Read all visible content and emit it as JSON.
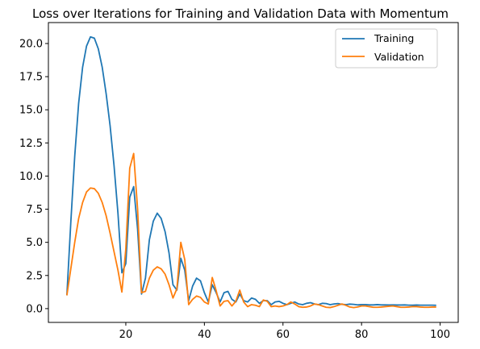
{
  "chart_data": {
    "type": "line",
    "title": "Loss over Iterations for Training and Validation Data with Momentum",
    "xlabel": "",
    "ylabel": "",
    "xlim": [
      0.3,
      104.6
    ],
    "ylim": [
      -1.04,
      21.58
    ],
    "xticks": [
      20,
      40,
      60,
      80,
      100
    ],
    "yticks": [
      0.0,
      2.5,
      5.0,
      7.5,
      10.0,
      12.5,
      15.0,
      17.5,
      20.0
    ],
    "xtick_labels": [
      "20",
      "40",
      "60",
      "80",
      "100"
    ],
    "ytick_labels": [
      "0.0",
      "2.5",
      "5.0",
      "7.5",
      "10.0",
      "12.5",
      "15.0",
      "17.5",
      "20.0"
    ],
    "grid": false,
    "legend_position": "top-right",
    "x": [
      5,
      6,
      7,
      8,
      9,
      10,
      11,
      12,
      13,
      14,
      15,
      16,
      17,
      18,
      19,
      20,
      21,
      22,
      23,
      24,
      25,
      26,
      27,
      28,
      29,
      30,
      31,
      32,
      33,
      34,
      35,
      36,
      37,
      38,
      39,
      40,
      41,
      42,
      43,
      44,
      45,
      46,
      47,
      48,
      49,
      50,
      51,
      52,
      53,
      54,
      55,
      56,
      57,
      58,
      59,
      60,
      61,
      62,
      63,
      64,
      65,
      66,
      67,
      68,
      69,
      70,
      71,
      72,
      73,
      74,
      75,
      76,
      77,
      78,
      79,
      80,
      81,
      82,
      83,
      84,
      85,
      86,
      87,
      88,
      89,
      90,
      91,
      92,
      93,
      94,
      95,
      96,
      97,
      98,
      99
    ],
    "series": [
      {
        "name": "Training",
        "color": "#1f77b4",
        "values": [
          1.0,
          6.5,
          11.5,
          15.5,
          18.2,
          19.8,
          20.5,
          20.4,
          19.6,
          18.2,
          16.2,
          13.8,
          10.8,
          7.2,
          2.7,
          3.4,
          8.4,
          9.2,
          6.0,
          1.1,
          2.3,
          5.2,
          6.6,
          7.2,
          6.8,
          5.8,
          4.2,
          1.8,
          1.4,
          3.8,
          2.9,
          0.6,
          1.7,
          2.3,
          2.1,
          1.2,
          0.5,
          1.8,
          1.2,
          0.5,
          1.2,
          1.3,
          0.7,
          0.5,
          1.1,
          0.6,
          0.5,
          0.8,
          0.7,
          0.4,
          0.6,
          0.6,
          0.3,
          0.5,
          0.55,
          0.4,
          0.3,
          0.4,
          0.5,
          0.35,
          0.3,
          0.4,
          0.45,
          0.35,
          0.3,
          0.4,
          0.38,
          0.3,
          0.35,
          0.38,
          0.32,
          0.3,
          0.34,
          0.32,
          0.28,
          0.3,
          0.3,
          0.28,
          0.28,
          0.3,
          0.28,
          0.28,
          0.27,
          0.28,
          0.27,
          0.27,
          0.28,
          0.26,
          0.26,
          0.27,
          0.26,
          0.26,
          0.26,
          0.26,
          0.25
        ]
      },
      {
        "name": "Validation",
        "color": "#ff7f0e",
        "values": [
          1.0,
          3.0,
          5.0,
          6.8,
          8.0,
          8.8,
          9.1,
          9.05,
          8.7,
          8.0,
          7.0,
          5.7,
          4.3,
          2.9,
          1.25,
          4.5,
          10.6,
          11.7,
          7.5,
          1.2,
          1.3,
          2.3,
          2.9,
          3.15,
          3.0,
          2.6,
          1.8,
          0.8,
          1.5,
          5.0,
          3.7,
          0.3,
          0.7,
          0.95,
          0.85,
          0.5,
          0.35,
          2.35,
          1.35,
          0.2,
          0.55,
          0.6,
          0.2,
          0.55,
          1.4,
          0.5,
          0.15,
          0.3,
          0.25,
          0.15,
          0.65,
          0.55,
          0.15,
          0.2,
          0.15,
          0.2,
          0.3,
          0.5,
          0.35,
          0.15,
          0.1,
          0.12,
          0.2,
          0.35,
          0.3,
          0.2,
          0.1,
          0.08,
          0.15,
          0.25,
          0.35,
          0.25,
          0.12,
          0.08,
          0.12,
          0.2,
          0.2,
          0.15,
          0.1,
          0.1,
          0.12,
          0.15,
          0.18,
          0.2,
          0.15,
          0.1,
          0.1,
          0.12,
          0.15,
          0.15,
          0.12,
          0.1,
          0.1,
          0.12,
          0.12
        ]
      }
    ]
  }
}
